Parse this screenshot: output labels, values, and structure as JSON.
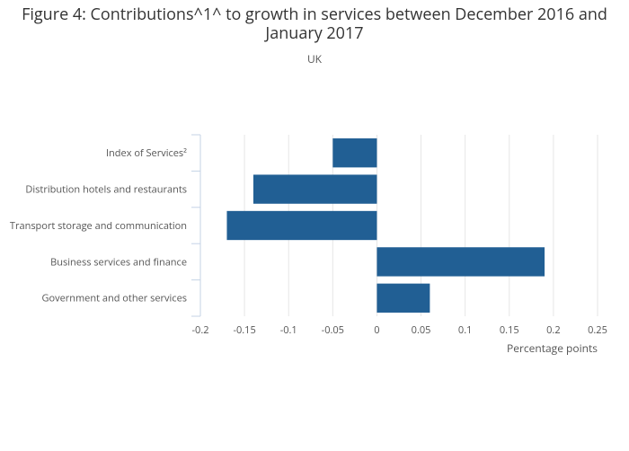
{
  "chart_data": {
    "type": "hbar",
    "title": "Figure 4: Contributions^1^ to growth in services between December 2016 and January 2017",
    "subtitle": "UK",
    "x_label": "Percentage points",
    "categories": [
      "Index of Services²",
      "Distribution hotels and restaurants",
      "Transport storage and communication",
      "Business services and finance",
      "Government and other services"
    ],
    "values": [
      -0.05,
      -0.14,
      -0.17,
      0.19,
      0.06
    ],
    "color": "#215f94",
    "xlim": [
      -0.2,
      0.25
    ],
    "xticks": [
      -0.2,
      -0.15,
      -0.1,
      -0.05,
      0,
      0.05,
      0.1,
      0.15,
      0.2,
      0.25
    ],
    "grid": true
  }
}
